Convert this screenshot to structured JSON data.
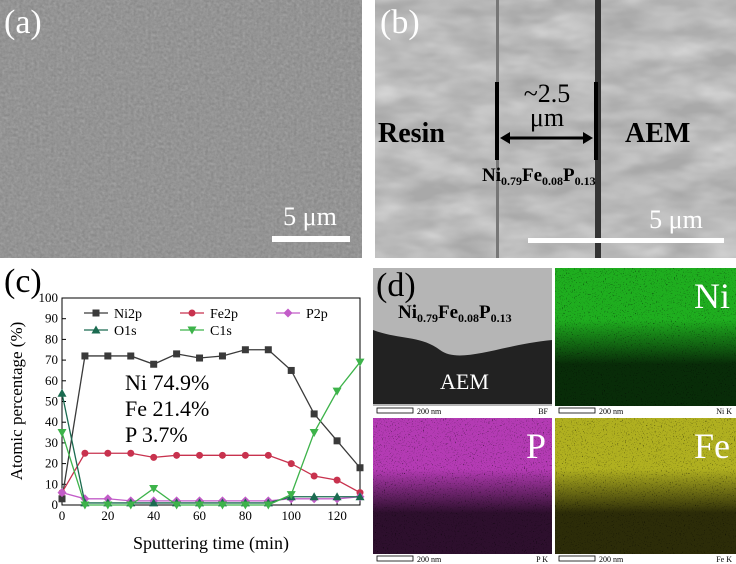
{
  "panels": {
    "a": {
      "label": "(a)",
      "scale_bar": "5 μm"
    },
    "b": {
      "label": "(b)",
      "scale_bar": "5 μm",
      "left": "Resin",
      "right": "AEM",
      "thickness": "~2.5",
      "thickness_unit": "μm",
      "formula": [
        "Ni",
        "0.79",
        "Fe",
        "0.08",
        "P",
        "0.13"
      ]
    },
    "c": {
      "label": "(c)"
    },
    "d": {
      "label": "(d)",
      "formula": [
        "Ni",
        "0.79",
        "Fe",
        "0.08",
        "P",
        "0.13"
      ],
      "substrate": "AEM",
      "maps": [
        {
          "scale_bar": "200 nm",
          "channel": "BF"
        },
        {
          "element": "Ni",
          "scale_bar": "200 nm",
          "channel": "Ni K"
        },
        {
          "element": "P",
          "scale_bar": "200 nm",
          "channel": "P K"
        },
        {
          "element": "Fe",
          "scale_bar": "200 nm",
          "channel": "Fe K"
        }
      ]
    }
  },
  "chart_data": {
    "type": "line",
    "x_label": "Sputtering time (min)",
    "y_label": "Atomic percentage (%)",
    "x": [
      0,
      10,
      20,
      30,
      40,
      50,
      60,
      70,
      80,
      90,
      100,
      110,
      120,
      130
    ],
    "xlim": [
      0,
      130
    ],
    "xticks": [
      0,
      20,
      40,
      60,
      80,
      100,
      120
    ],
    "ylim": [
      0,
      100
    ],
    "yticks": [
      0,
      10,
      20,
      30,
      40,
      50,
      60,
      70,
      80,
      90,
      100
    ],
    "legend": "upper-left",
    "series": [
      {
        "name": "Ni2p",
        "color": "#3a3a3a",
        "marker": "square",
        "values": [
          3,
          72,
          72,
          72,
          68,
          73,
          71,
          72,
          75,
          75,
          65,
          44,
          31,
          18
        ]
      },
      {
        "name": "Fe2p",
        "color": "#c8324e",
        "marker": "circle",
        "values": [
          6,
          25,
          25,
          25,
          23,
          24,
          24,
          24,
          24,
          24,
          20,
          14,
          12,
          6
        ]
      },
      {
        "name": "P2p",
        "color": "#c25cc8",
        "marker": "diamond",
        "values": [
          6,
          3,
          3,
          2,
          2,
          2,
          2,
          2,
          2,
          2,
          3,
          3,
          3,
          4
        ]
      },
      {
        "name": "O1s",
        "color": "#1b6b50",
        "marker": "triangle-up",
        "values": [
          54,
          1,
          1,
          1,
          1,
          1,
          1,
          1,
          1,
          1,
          4,
          4,
          4,
          4
        ]
      },
      {
        "name": "C1s",
        "color": "#3db34a",
        "marker": "triangle-down",
        "values": [
          35,
          0,
          0,
          0,
          8,
          0,
          0,
          0,
          0,
          0,
          5,
          35,
          55,
          69
        ]
      }
    ],
    "annotations": [
      "Ni 74.9%",
      "Fe 21.4%",
      "P 3.7%"
    ]
  }
}
